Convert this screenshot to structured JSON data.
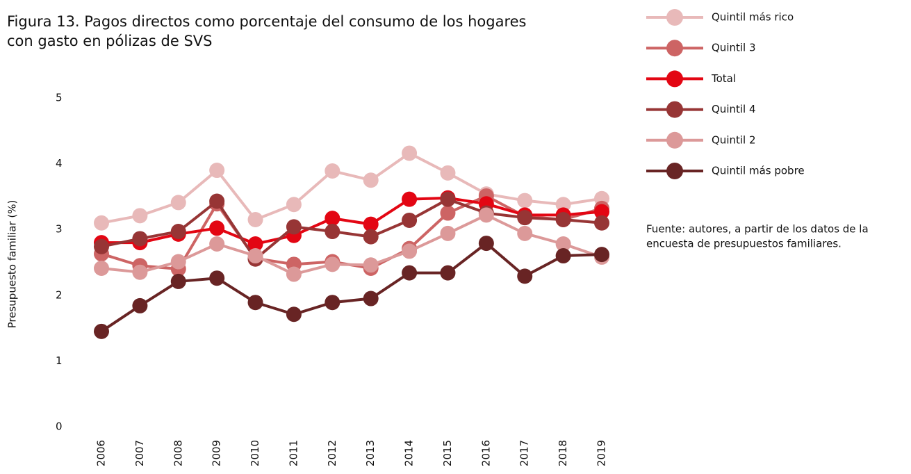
{
  "chart_data": {
    "type": "line",
    "title": [
      "Figura 13. Pagos directos como porcentaje del consumo de los hogares",
      "con gasto en pólizas de SVS"
    ],
    "y_label": "Presupuesto familiar (%)",
    "source": [
      "Fuente: autores, a partir de los datos de la",
      "encuesta de presupuestos familiares."
    ],
    "categories": [
      "2006",
      "2007",
      "2008",
      "2009",
      "2010",
      "2011",
      "2012",
      "2013",
      "2014",
      "2015",
      "2016",
      "2017",
      "2018",
      "2019"
    ],
    "ylim": [
      0,
      5
    ],
    "yticks": [
      0,
      1,
      2,
      3,
      4,
      5
    ],
    "grid": false,
    "series": [
      {
        "name": "Quintil más rico",
        "color": "#e8b9b9",
        "values": [
          3.1,
          3.21,
          3.41,
          3.9,
          3.15,
          3.38,
          3.89,
          3.75,
          4.16,
          3.86,
          3.54,
          3.44,
          3.38,
          3.47
        ]
      },
      {
        "name": "Quintil 3",
        "color": "#cd6464",
        "values": [
          2.63,
          2.45,
          2.4,
          3.39,
          2.56,
          2.47,
          2.51,
          2.41,
          2.71,
          3.25,
          3.51,
          3.2,
          3.15,
          3.32
        ]
      },
      {
        "name": "Total",
        "color": "#e30613",
        "values": [
          2.8,
          2.8,
          2.93,
          3.02,
          2.78,
          2.91,
          3.17,
          3.08,
          3.46,
          3.48,
          3.39,
          3.22,
          3.22,
          3.27
        ]
      },
      {
        "name": "Quintil 4",
        "color": "#973535",
        "values": [
          2.74,
          2.86,
          2.97,
          3.43,
          2.55,
          3.04,
          2.97,
          2.89,
          3.14,
          3.46,
          3.25,
          3.18,
          3.15,
          3.1
        ]
      },
      {
        "name": "Quintil 2",
        "color": "#dc9999",
        "values": [
          2.41,
          2.35,
          2.51,
          2.78,
          2.6,
          2.32,
          2.47,
          2.46,
          2.67,
          2.94,
          3.22,
          2.94,
          2.78,
          2.58
        ]
      },
      {
        "name": "Quintil más pobre",
        "color": "#682424",
        "values": [
          1.45,
          1.84,
          2.21,
          2.26,
          1.89,
          1.71,
          1.89,
          1.95,
          2.34,
          2.34,
          2.79,
          2.29,
          2.6,
          2.62
        ]
      }
    ]
  }
}
